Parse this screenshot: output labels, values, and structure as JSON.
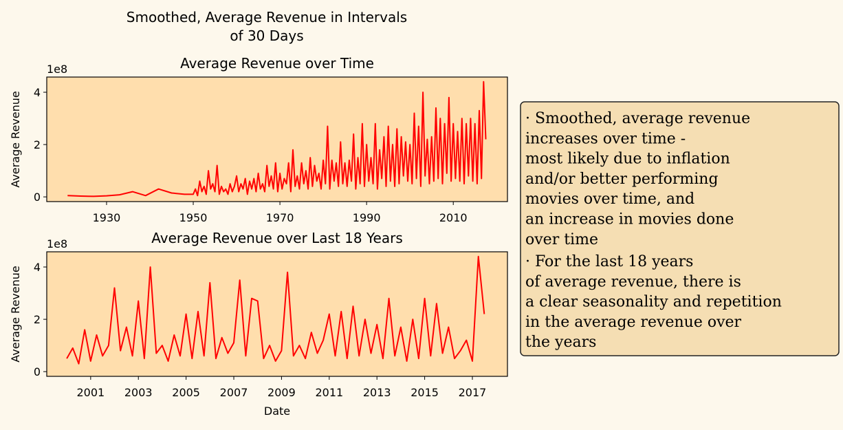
{
  "title": [
    "Smoothed, Average Revenue in Intervals",
    "of 30 Days"
  ],
  "annotation": [
    "· Smoothed, average revenue",
    "increases over time -",
    "most likely due to inflation",
    "and/or better performing",
    "movies over time, and",
    "an increase in movies done",
    "over time",
    "· For the last 18 years",
    "of average revenue, there is",
    "a clear seasonality and repetition",
    "in the average revenue over",
    "the years"
  ],
  "chart_data": [
    {
      "type": "line",
      "title": "Average Revenue over Time",
      "ylabel": "Average Revenue",
      "y_offset_label": "1e8",
      "color": "#ff0000",
      "xlim": [
        1916.2,
        2022.5
      ],
      "ylim": [
        -0.18,
        4.58
      ],
      "xticks": [
        1930,
        1950,
        1970,
        1990,
        2010
      ],
      "yticks": [
        0,
        2,
        4
      ],
      "x": [
        1921,
        1924,
        1927,
        1930,
        1933,
        1936,
        1939,
        1942,
        1945,
        1948,
        1950,
        1950.5,
        1951,
        1951.5,
        1952,
        1952.5,
        1953,
        1953.5,
        1954,
        1954.5,
        1955,
        1955.5,
        1956,
        1956.5,
        1957,
        1957.5,
        1958,
        1958.5,
        1959,
        1959.5,
        1960,
        1960.5,
        1961,
        1961.5,
        1962,
        1962.5,
        1963,
        1963.5,
        1964,
        1964.5,
        1965,
        1965.5,
        1966,
        1966.5,
        1967,
        1967.5,
        1968,
        1968.5,
        1969,
        1969.5,
        1970,
        1970.5,
        1971,
        1971.5,
        1972,
        1972.5,
        1973,
        1973.5,
        1974,
        1974.5,
        1975,
        1975.5,
        1976,
        1976.5,
        1977,
        1977.5,
        1978,
        1978.5,
        1979,
        1979.5,
        1980,
        1980.5,
        1981,
        1981.5,
        1982,
        1982.5,
        1983,
        1983.5,
        1984,
        1984.5,
        1985,
        1985.5,
        1986,
        1986.5,
        1987,
        1987.5,
        1988,
        1988.5,
        1989,
        1989.5,
        1990,
        1990.5,
        1991,
        1991.5,
        1992,
        1992.5,
        1993,
        1993.5,
        1994,
        1994.5,
        1995,
        1995.5,
        1996,
        1996.5,
        1997,
        1997.5,
        1998,
        1998.5,
        1999,
        1999.5,
        2000,
        2000.5,
        2001,
        2001.5,
        2002,
        2002.5,
        2003,
        2003.5,
        2004,
        2004.5,
        2005,
        2005.5,
        2006,
        2006.5,
        2007,
        2007.5,
        2008,
        2008.5,
        2009,
        2009.5,
        2010,
        2010.5,
        2011,
        2011.5,
        2012,
        2012.5,
        2013,
        2013.5,
        2014,
        2014.5,
        2015,
        2015.5,
        2016,
        2016.5,
        2017,
        2017.5
      ],
      "values": [
        0.05,
        0.03,
        0.02,
        0.04,
        0.08,
        0.2,
        0.05,
        0.3,
        0.15,
        0.1,
        0.1,
        0.3,
        0.05,
        0.6,
        0.2,
        0.4,
        0.1,
        1.0,
        0.3,
        0.5,
        0.2,
        1.2,
        0.1,
        0.4,
        0.2,
        0.3,
        0.1,
        0.5,
        0.2,
        0.4,
        0.8,
        0.2,
        0.5,
        0.3,
        0.7,
        0.1,
        0.6,
        0.3,
        0.7,
        0.2,
        0.9,
        0.3,
        0.5,
        0.2,
        1.2,
        0.4,
        0.8,
        0.3,
        1.3,
        0.2,
        0.9,
        0.3,
        0.7,
        0.5,
        1.3,
        0.2,
        1.8,
        0.4,
        0.8,
        0.3,
        1.3,
        0.5,
        1.0,
        0.3,
        1.5,
        0.4,
        1.2,
        0.6,
        0.9,
        0.3,
        1.4,
        0.5,
        2.7,
        0.3,
        1.4,
        0.6,
        1.3,
        0.4,
        2.1,
        0.5,
        1.3,
        0.4,
        1.4,
        0.6,
        2.4,
        0.3,
        1.5,
        0.5,
        2.8,
        0.4,
        2.0,
        0.6,
        1.5,
        0.5,
        2.8,
        0.3,
        1.8,
        0.7,
        2.3,
        0.4,
        2.7,
        0.6,
        2.0,
        0.4,
        2.6,
        0.5,
        2.3,
        0.8,
        2.1,
        0.6,
        2.0,
        0.5,
        3.2,
        0.7,
        2.7,
        0.4,
        4.0,
        0.8,
        2.2,
        0.5,
        2.3,
        0.6,
        3.4,
        0.7,
        3.0,
        0.5,
        2.8,
        0.9,
        3.8,
        0.6,
        2.8,
        0.7,
        2.5,
        0.6,
        3.0,
        0.5,
        2.8,
        0.8,
        3.0,
        0.6,
        2.8,
        0.5,
        3.3,
        0.7,
        4.4,
        2.2
      ]
    },
    {
      "type": "line",
      "title": "Average Revenue over Last 18 Years",
      "xlabel": "Date",
      "ylabel": "Average Revenue",
      "y_offset_label": "1e8",
      "color": "#ff0000",
      "xlim": [
        1999.16,
        2018.47
      ],
      "ylim": [
        -0.18,
        4.58
      ],
      "xticks": [
        2001,
        2003,
        2005,
        2007,
        2009,
        2011,
        2013,
        2015,
        2017
      ],
      "yticks": [
        0,
        2,
        4
      ],
      "x": [
        2000,
        2000.25,
        2000.5,
        2000.75,
        2001,
        2001.25,
        2001.5,
        2001.75,
        2002,
        2002.25,
        2002.5,
        2002.75,
        2003,
        2003.25,
        2003.5,
        2003.75,
        2004,
        2004.25,
        2004.5,
        2004.75,
        2005,
        2005.25,
        2005.5,
        2005.75,
        2006,
        2006.25,
        2006.5,
        2006.75,
        2007,
        2007.25,
        2007.5,
        2007.75,
        2008,
        2008.25,
        2008.5,
        2008.75,
        2009,
        2009.25,
        2009.5,
        2009.75,
        2010,
        2010.25,
        2010.5,
        2010.75,
        2011,
        2011.25,
        2011.5,
        2011.75,
        2012,
        2012.25,
        2012.5,
        2012.75,
        2013,
        2013.25,
        2013.5,
        2013.75,
        2014,
        2014.25,
        2014.5,
        2014.75,
        2015,
        2015.25,
        2015.5,
        2015.75,
        2016,
        2016.25,
        2016.5,
        2016.75,
        2017,
        2017.25,
        2017.5
      ],
      "values": [
        0.5,
        0.9,
        0.3,
        1.6,
        0.4,
        1.4,
        0.6,
        1.0,
        3.2,
        0.8,
        1.7,
        0.6,
        2.7,
        0.5,
        4.0,
        0.7,
        1.0,
        0.4,
        1.4,
        0.6,
        2.2,
        0.5,
        2.3,
        0.6,
        3.4,
        0.5,
        1.3,
        0.7,
        1.1,
        3.5,
        0.6,
        2.8,
        2.7,
        0.5,
        1.0,
        0.4,
        0.8,
        3.8,
        0.6,
        1.0,
        0.5,
        1.5,
        0.7,
        1.2,
        2.2,
        0.6,
        2.3,
        0.5,
        2.5,
        0.6,
        2.0,
        0.7,
        1.8,
        0.5,
        2.8,
        0.6,
        1.7,
        0.4,
        2.0,
        0.5,
        2.8,
        0.6,
        2.6,
        0.7,
        1.7,
        0.5,
        0.8,
        1.2,
        0.4,
        4.4,
        2.2
      ]
    }
  ]
}
